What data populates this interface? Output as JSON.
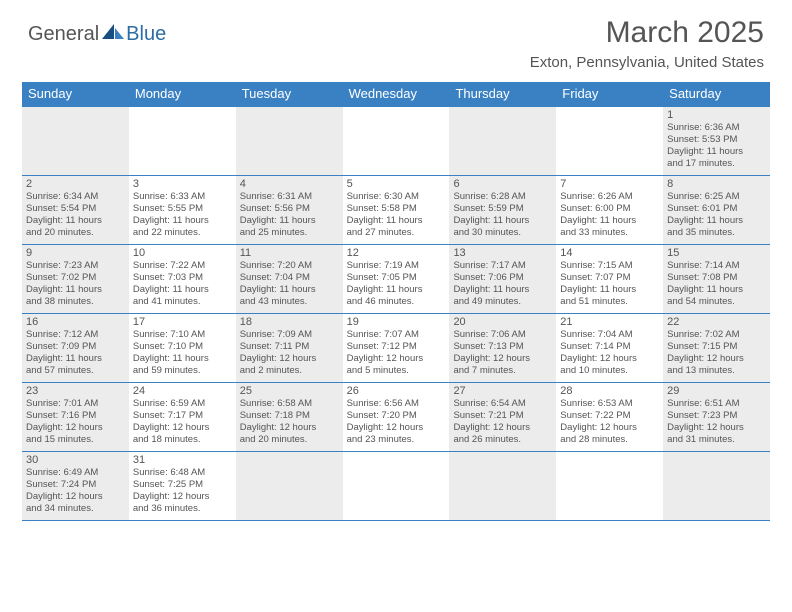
{
  "logo": {
    "text1": "General",
    "text2": "Blue"
  },
  "title": "March 2025",
  "location": "Exton, Pennsylvania, United States",
  "colors": {
    "header_bg": "#3a81c4",
    "header_text": "#ffffff",
    "shaded_bg": "#ececec",
    "border": "#3a81c4",
    "text": "#555555",
    "logo_blue": "#2d6ca2"
  },
  "fonts": {
    "title_size": 30,
    "location_size": 15,
    "dayhead_size": 13,
    "daynum_size": 11,
    "info_size": 9.5
  },
  "day_labels": [
    "Sunday",
    "Monday",
    "Tuesday",
    "Wednesday",
    "Thursday",
    "Friday",
    "Saturday"
  ],
  "weeks": [
    [
      {
        "shaded": true
      },
      {
        "shaded": false
      },
      {
        "shaded": true
      },
      {
        "shaded": false
      },
      {
        "shaded": true
      },
      {
        "shaded": false
      },
      {
        "shaded": true,
        "day": "1",
        "sunrise": "Sunrise: 6:36 AM",
        "sunset": "Sunset: 5:53 PM",
        "daylight1": "Daylight: 11 hours",
        "daylight2": "and 17 minutes."
      }
    ],
    [
      {
        "shaded": true,
        "day": "2",
        "sunrise": "Sunrise: 6:34 AM",
        "sunset": "Sunset: 5:54 PM",
        "daylight1": "Daylight: 11 hours",
        "daylight2": "and 20 minutes."
      },
      {
        "shaded": false,
        "day": "3",
        "sunrise": "Sunrise: 6:33 AM",
        "sunset": "Sunset: 5:55 PM",
        "daylight1": "Daylight: 11 hours",
        "daylight2": "and 22 minutes."
      },
      {
        "shaded": true,
        "day": "4",
        "sunrise": "Sunrise: 6:31 AM",
        "sunset": "Sunset: 5:56 PM",
        "daylight1": "Daylight: 11 hours",
        "daylight2": "and 25 minutes."
      },
      {
        "shaded": false,
        "day": "5",
        "sunrise": "Sunrise: 6:30 AM",
        "sunset": "Sunset: 5:58 PM",
        "daylight1": "Daylight: 11 hours",
        "daylight2": "and 27 minutes."
      },
      {
        "shaded": true,
        "day": "6",
        "sunrise": "Sunrise: 6:28 AM",
        "sunset": "Sunset: 5:59 PM",
        "daylight1": "Daylight: 11 hours",
        "daylight2": "and 30 minutes."
      },
      {
        "shaded": false,
        "day": "7",
        "sunrise": "Sunrise: 6:26 AM",
        "sunset": "Sunset: 6:00 PM",
        "daylight1": "Daylight: 11 hours",
        "daylight2": "and 33 minutes."
      },
      {
        "shaded": true,
        "day": "8",
        "sunrise": "Sunrise: 6:25 AM",
        "sunset": "Sunset: 6:01 PM",
        "daylight1": "Daylight: 11 hours",
        "daylight2": "and 35 minutes."
      }
    ],
    [
      {
        "shaded": true,
        "day": "9",
        "sunrise": "Sunrise: 7:23 AM",
        "sunset": "Sunset: 7:02 PM",
        "daylight1": "Daylight: 11 hours",
        "daylight2": "and 38 minutes."
      },
      {
        "shaded": false,
        "day": "10",
        "sunrise": "Sunrise: 7:22 AM",
        "sunset": "Sunset: 7:03 PM",
        "daylight1": "Daylight: 11 hours",
        "daylight2": "and 41 minutes."
      },
      {
        "shaded": true,
        "day": "11",
        "sunrise": "Sunrise: 7:20 AM",
        "sunset": "Sunset: 7:04 PM",
        "daylight1": "Daylight: 11 hours",
        "daylight2": "and 43 minutes."
      },
      {
        "shaded": false,
        "day": "12",
        "sunrise": "Sunrise: 7:19 AM",
        "sunset": "Sunset: 7:05 PM",
        "daylight1": "Daylight: 11 hours",
        "daylight2": "and 46 minutes."
      },
      {
        "shaded": true,
        "day": "13",
        "sunrise": "Sunrise: 7:17 AM",
        "sunset": "Sunset: 7:06 PM",
        "daylight1": "Daylight: 11 hours",
        "daylight2": "and 49 minutes."
      },
      {
        "shaded": false,
        "day": "14",
        "sunrise": "Sunrise: 7:15 AM",
        "sunset": "Sunset: 7:07 PM",
        "daylight1": "Daylight: 11 hours",
        "daylight2": "and 51 minutes."
      },
      {
        "shaded": true,
        "day": "15",
        "sunrise": "Sunrise: 7:14 AM",
        "sunset": "Sunset: 7:08 PM",
        "daylight1": "Daylight: 11 hours",
        "daylight2": "and 54 minutes."
      }
    ],
    [
      {
        "shaded": true,
        "day": "16",
        "sunrise": "Sunrise: 7:12 AM",
        "sunset": "Sunset: 7:09 PM",
        "daylight1": "Daylight: 11 hours",
        "daylight2": "and 57 minutes."
      },
      {
        "shaded": false,
        "day": "17",
        "sunrise": "Sunrise: 7:10 AM",
        "sunset": "Sunset: 7:10 PM",
        "daylight1": "Daylight: 11 hours",
        "daylight2": "and 59 minutes."
      },
      {
        "shaded": true,
        "day": "18",
        "sunrise": "Sunrise: 7:09 AM",
        "sunset": "Sunset: 7:11 PM",
        "daylight1": "Daylight: 12 hours",
        "daylight2": "and 2 minutes."
      },
      {
        "shaded": false,
        "day": "19",
        "sunrise": "Sunrise: 7:07 AM",
        "sunset": "Sunset: 7:12 PM",
        "daylight1": "Daylight: 12 hours",
        "daylight2": "and 5 minutes."
      },
      {
        "shaded": true,
        "day": "20",
        "sunrise": "Sunrise: 7:06 AM",
        "sunset": "Sunset: 7:13 PM",
        "daylight1": "Daylight: 12 hours",
        "daylight2": "and 7 minutes."
      },
      {
        "shaded": false,
        "day": "21",
        "sunrise": "Sunrise: 7:04 AM",
        "sunset": "Sunset: 7:14 PM",
        "daylight1": "Daylight: 12 hours",
        "daylight2": "and 10 minutes."
      },
      {
        "shaded": true,
        "day": "22",
        "sunrise": "Sunrise: 7:02 AM",
        "sunset": "Sunset: 7:15 PM",
        "daylight1": "Daylight: 12 hours",
        "daylight2": "and 13 minutes."
      }
    ],
    [
      {
        "shaded": true,
        "day": "23",
        "sunrise": "Sunrise: 7:01 AM",
        "sunset": "Sunset: 7:16 PM",
        "daylight1": "Daylight: 12 hours",
        "daylight2": "and 15 minutes."
      },
      {
        "shaded": false,
        "day": "24",
        "sunrise": "Sunrise: 6:59 AM",
        "sunset": "Sunset: 7:17 PM",
        "daylight1": "Daylight: 12 hours",
        "daylight2": "and 18 minutes."
      },
      {
        "shaded": true,
        "day": "25",
        "sunrise": "Sunrise: 6:58 AM",
        "sunset": "Sunset: 7:18 PM",
        "daylight1": "Daylight: 12 hours",
        "daylight2": "and 20 minutes."
      },
      {
        "shaded": false,
        "day": "26",
        "sunrise": "Sunrise: 6:56 AM",
        "sunset": "Sunset: 7:20 PM",
        "daylight1": "Daylight: 12 hours",
        "daylight2": "and 23 minutes."
      },
      {
        "shaded": true,
        "day": "27",
        "sunrise": "Sunrise: 6:54 AM",
        "sunset": "Sunset: 7:21 PM",
        "daylight1": "Daylight: 12 hours",
        "daylight2": "and 26 minutes."
      },
      {
        "shaded": false,
        "day": "28",
        "sunrise": "Sunrise: 6:53 AM",
        "sunset": "Sunset: 7:22 PM",
        "daylight1": "Daylight: 12 hours",
        "daylight2": "and 28 minutes."
      },
      {
        "shaded": true,
        "day": "29",
        "sunrise": "Sunrise: 6:51 AM",
        "sunset": "Sunset: 7:23 PM",
        "daylight1": "Daylight: 12 hours",
        "daylight2": "and 31 minutes."
      }
    ],
    [
      {
        "shaded": true,
        "day": "30",
        "sunrise": "Sunrise: 6:49 AM",
        "sunset": "Sunset: 7:24 PM",
        "daylight1": "Daylight: 12 hours",
        "daylight2": "and 34 minutes."
      },
      {
        "shaded": false,
        "day": "31",
        "sunrise": "Sunrise: 6:48 AM",
        "sunset": "Sunset: 7:25 PM",
        "daylight1": "Daylight: 12 hours",
        "daylight2": "and 36 minutes."
      },
      {
        "shaded": true
      },
      {
        "shaded": false
      },
      {
        "shaded": true
      },
      {
        "shaded": false
      },
      {
        "shaded": true
      }
    ]
  ]
}
